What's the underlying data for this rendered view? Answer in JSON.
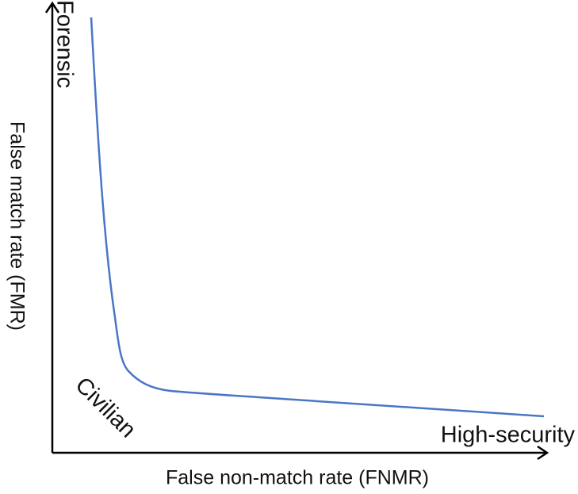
{
  "y_axis_label": "False match rate (FMR)",
  "x_axis_label": "False non-match rate (FNMR)",
  "annotations": {
    "top": "Forensic",
    "corner": "Civilian",
    "right": "High-security"
  }
}
